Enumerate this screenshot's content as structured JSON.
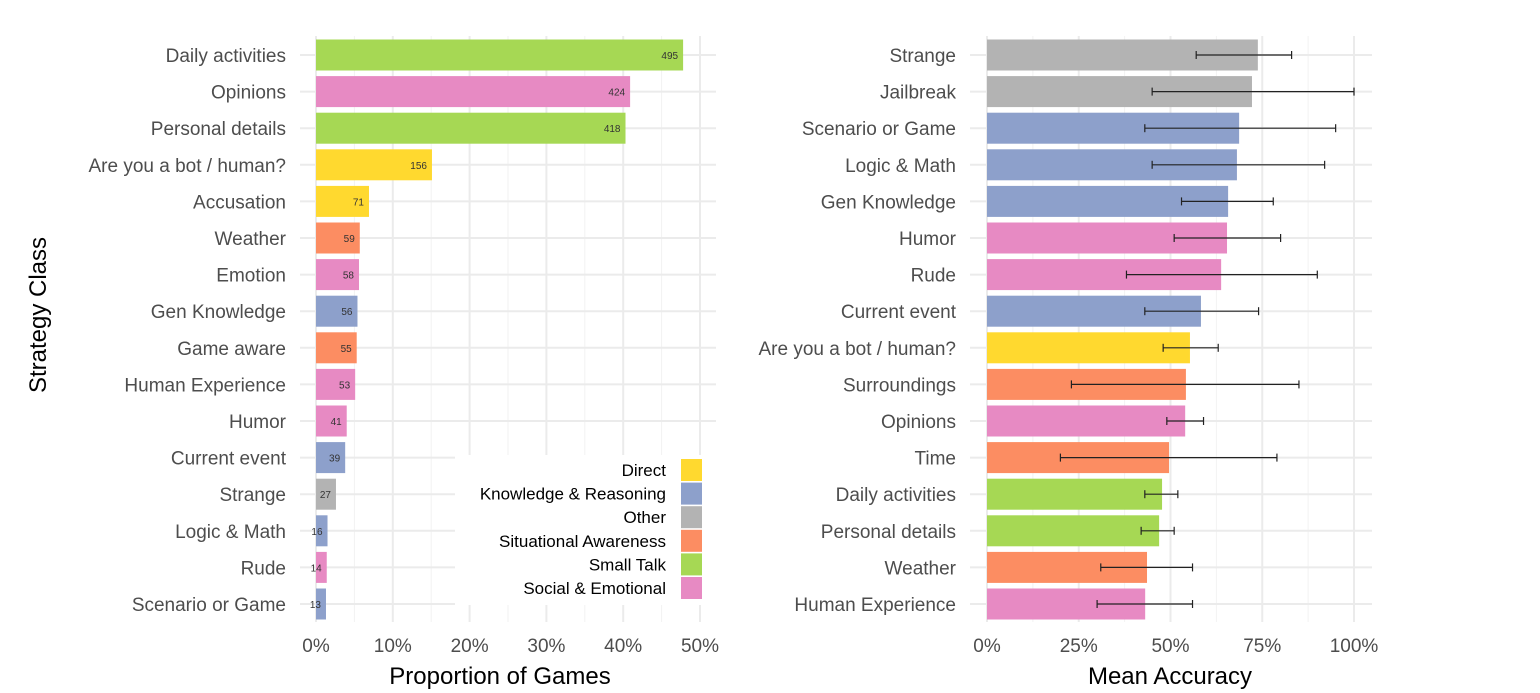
{
  "colors": {
    "Direct": "#FFD92F",
    "Knowledge & Reasoning": "#8DA0CB",
    "Other": "#B3B3B3",
    "Situational Awareness": "#FC8D62",
    "Small Talk": "#A6D854",
    "Social & Emotional": "#E78AC3"
  },
  "chart_data": [
    {
      "type": "bar",
      "orientation": "horizontal",
      "ylabel": "Strategy Class",
      "xlabel": "Proportion of Games",
      "xlim": [
        0,
        0.5
      ],
      "xticks": [
        "0%",
        "10%",
        "20%",
        "30%",
        "40%",
        "50%"
      ],
      "grid": true,
      "legend": {
        "placement": "bottom-right",
        "entries": [
          "Direct",
          "Knowledge & Reasoning",
          "Other",
          "Situational Awareness",
          "Small Talk",
          "Social & Emotional"
        ]
      },
      "categories": [
        "Daily activities",
        "Opinions",
        "Personal details",
        "Are you a bot / human?",
        "Accusation",
        "Weather",
        "Emotion",
        "Gen Knowledge",
        "Game aware",
        "Human Experience",
        "Humor",
        "Current event",
        "Strange",
        "Logic & Math",
        "Rude",
        "Scenario or Game"
      ],
      "groups": [
        "Small Talk",
        "Social & Emotional",
        "Small Talk",
        "Direct",
        "Direct",
        "Situational Awareness",
        "Social & Emotional",
        "Knowledge & Reasoning",
        "Situational Awareness",
        "Social & Emotional",
        "Social & Emotional",
        "Knowledge & Reasoning",
        "Other",
        "Knowledge & Reasoning",
        "Social & Emotional",
        "Knowledge & Reasoning"
      ],
      "counts": [
        495,
        424,
        418,
        156,
        71,
        59,
        58,
        56,
        55,
        53,
        41,
        39,
        27,
        16,
        14,
        13
      ],
      "values": [
        0.478,
        0.409,
        0.403,
        0.151,
        0.069,
        0.057,
        0.056,
        0.054,
        0.053,
        0.051,
        0.04,
        0.038,
        0.026,
        0.015,
        0.014,
        0.013
      ]
    },
    {
      "type": "bar",
      "orientation": "horizontal",
      "xlabel": "Mean Accuracy",
      "xlim": [
        0,
        1
      ],
      "xticks": [
        "0%",
        "25%",
        "50%",
        "75%",
        "100%"
      ],
      "grid": true,
      "categories": [
        "Strange",
        "Jailbreak",
        "Scenario or Game",
        "Logic & Math",
        "Gen Knowledge",
        "Humor",
        "Rude",
        "Current event",
        "Are you a bot / human?",
        "Surroundings",
        "Opinions",
        "Time",
        "Daily activities",
        "Personal details",
        "Weather",
        "Human Experience"
      ],
      "groups": [
        "Other",
        "Other",
        "Knowledge & Reasoning",
        "Knowledge & Reasoning",
        "Knowledge & Reasoning",
        "Social & Emotional",
        "Social & Emotional",
        "Knowledge & Reasoning",
        "Direct",
        "Situational Awareness",
        "Social & Emotional",
        "Situational Awareness",
        "Small Talk",
        "Small Talk",
        "Situational Awareness",
        "Social & Emotional"
      ],
      "values": [
        0.738,
        0.722,
        0.687,
        0.681,
        0.657,
        0.654,
        0.638,
        0.583,
        0.553,
        0.542,
        0.54,
        0.496,
        0.477,
        0.469,
        0.436,
        0.431
      ],
      "error_low": [
        0.57,
        0.45,
        0.43,
        0.45,
        0.53,
        0.51,
        0.38,
        0.43,
        0.48,
        0.23,
        0.49,
        0.2,
        0.43,
        0.42,
        0.31,
        0.3
      ],
      "error_high": [
        0.83,
        1.0,
        0.95,
        0.92,
        0.78,
        0.8,
        0.9,
        0.74,
        0.63,
        0.85,
        0.59,
        0.79,
        0.52,
        0.51,
        0.56,
        0.56
      ]
    }
  ]
}
